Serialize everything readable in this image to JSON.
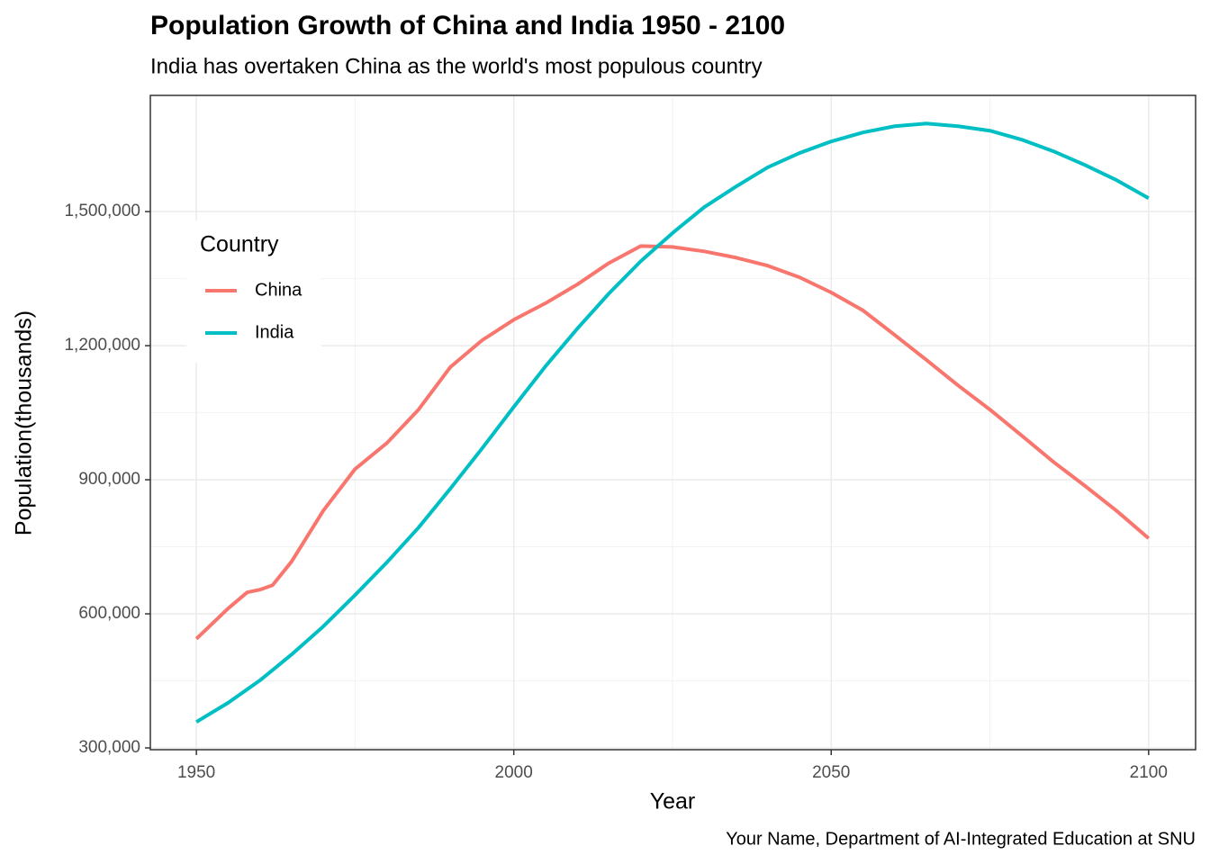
{
  "chart_data": {
    "type": "line",
    "title": "Population Growth of China and India 1950 - 2100",
    "subtitle": "India has overtaken China as the world's most populous country",
    "x_label": "Year",
    "y_label": "Population(thousands)",
    "caption": "Your Name, Department of AI-Integrated Education at SNU",
    "legend_title": "Country",
    "legend_position": "inside-top-left",
    "grid": true,
    "x": [
      1950,
      1955,
      1958,
      1960,
      1962,
      1965,
      1970,
      1975,
      1980,
      1985,
      1990,
      1995,
      2000,
      2005,
      2010,
      2015,
      2020,
      2025,
      2030,
      2035,
      2040,
      2045,
      2050,
      2055,
      2060,
      2065,
      2070,
      2075,
      2080,
      2085,
      2090,
      2095,
      2100
    ],
    "series": [
      {
        "name": "China",
        "color": "#F8766D",
        "values": [
          544000,
          612000,
          648000,
          654000,
          664000,
          717000,
          831000,
          924000,
          982000,
          1057000,
          1152000,
          1212000,
          1258000,
          1295000,
          1337000,
          1385000,
          1423000,
          1421000,
          1411000,
          1397000,
          1379000,
          1353000,
          1319000,
          1279000,
          1224000,
          1168000,
          1111000,
          1057000,
          999000,
          940000,
          886000,
          830000,
          769000
        ]
      },
      {
        "name": "India",
        "color": "#00BFC4",
        "values": [
          358000,
          401000,
          431000,
          451000,
          474000,
          509000,
          572000,
          642000,
          715000,
          793000,
          880000,
          970000,
          1063000,
          1154000,
          1238000,
          1317000,
          1389000,
          1452000,
          1510000,
          1556000,
          1599000,
          1631000,
          1657000,
          1677000,
          1691000,
          1697000,
          1691000,
          1681000,
          1661000,
          1635000,
          1604000,
          1570000,
          1530000
        ]
      }
    ],
    "xlim": [
      1942.75,
      2107.4
    ],
    "ylim": [
      296000,
      1760000
    ],
    "xticks": [
      1950,
      2000,
      2050,
      2100
    ],
    "yticks": [
      {
        "value": 300000,
        "label": "300,000"
      },
      {
        "value": 600000,
        "label": "600,000"
      },
      {
        "value": 900000,
        "label": "900,000"
      },
      {
        "value": 1200000,
        "label": "1,200,000"
      },
      {
        "value": 1500000,
        "label": "1,500,000"
      }
    ]
  }
}
